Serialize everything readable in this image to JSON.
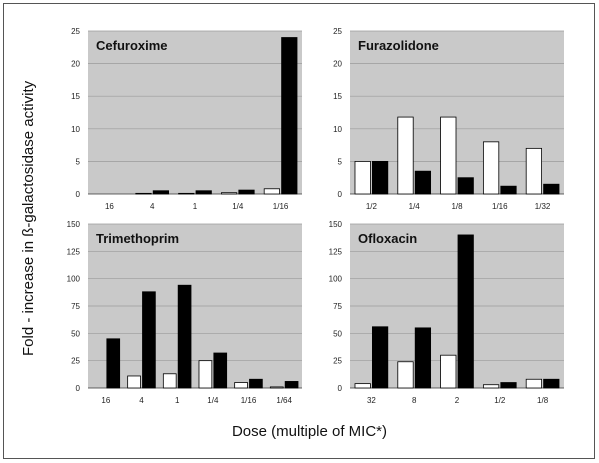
{
  "figure": {
    "y_title": "Fold - increase in ß-galactosidase activity",
    "x_title": "Dose (multiple of MIC*)",
    "colors": {
      "panel_bg": "#c9c9c9",
      "open_bar": "#ffffff",
      "filled_bar": "#000000",
      "grid": "#9a9a9a"
    }
  },
  "chart_data": [
    {
      "type": "bar",
      "title": "Cefuroxime",
      "categories": [
        "16",
        "4",
        "1",
        "1/4",
        "1/16"
      ],
      "ylim": [
        0,
        25
      ],
      "yticks": [
        0,
        5,
        10,
        15,
        20,
        25
      ],
      "series": [
        {
          "values": [
            0,
            0.1,
            0.1,
            0.2,
            0.8
          ],
          "style": "open"
        },
        {
          "values": [
            0,
            0.5,
            0.5,
            0.6,
            24
          ],
          "style": "filled"
        }
      ]
    },
    {
      "type": "bar",
      "title": "Furazolidone",
      "categories": [
        "1/2",
        "1/4",
        "1/8",
        "1/16",
        "1/32"
      ],
      "ylim": [
        0,
        25
      ],
      "yticks": [
        0,
        5,
        10,
        15,
        20,
        25
      ],
      "series": [
        {
          "values": [
            5,
            11.8,
            11.8,
            8,
            7
          ],
          "style": "open"
        },
        {
          "values": [
            5,
            3.5,
            2.5,
            1.2,
            1.5
          ],
          "style": "filled"
        }
      ]
    },
    {
      "type": "bar",
      "title": "Trimethoprim",
      "categories": [
        "16",
        "4",
        "1",
        "1/4",
        "1/16",
        "1/64"
      ],
      "ylim": [
        0,
        150
      ],
      "yticks": [
        0,
        25,
        50,
        75,
        100,
        125,
        150
      ],
      "series": [
        {
          "values": [
            0,
            11,
            13,
            25,
            5,
            1
          ],
          "style": "open"
        },
        {
          "values": [
            45,
            88,
            94,
            32,
            8,
            6
          ],
          "style": "filled"
        }
      ]
    },
    {
      "type": "bar",
      "title": "Ofloxacin",
      "categories": [
        "32",
        "8",
        "2",
        "1/2",
        "1/8"
      ],
      "ylim": [
        0,
        150
      ],
      "yticks": [
        0,
        25,
        50,
        75,
        100,
        125,
        150
      ],
      "series": [
        {
          "values": [
            4,
            24,
            30,
            3,
            8
          ],
          "style": "open"
        },
        {
          "values": [
            56,
            55,
            140,
            5,
            8
          ],
          "style": "filled"
        }
      ]
    }
  ]
}
